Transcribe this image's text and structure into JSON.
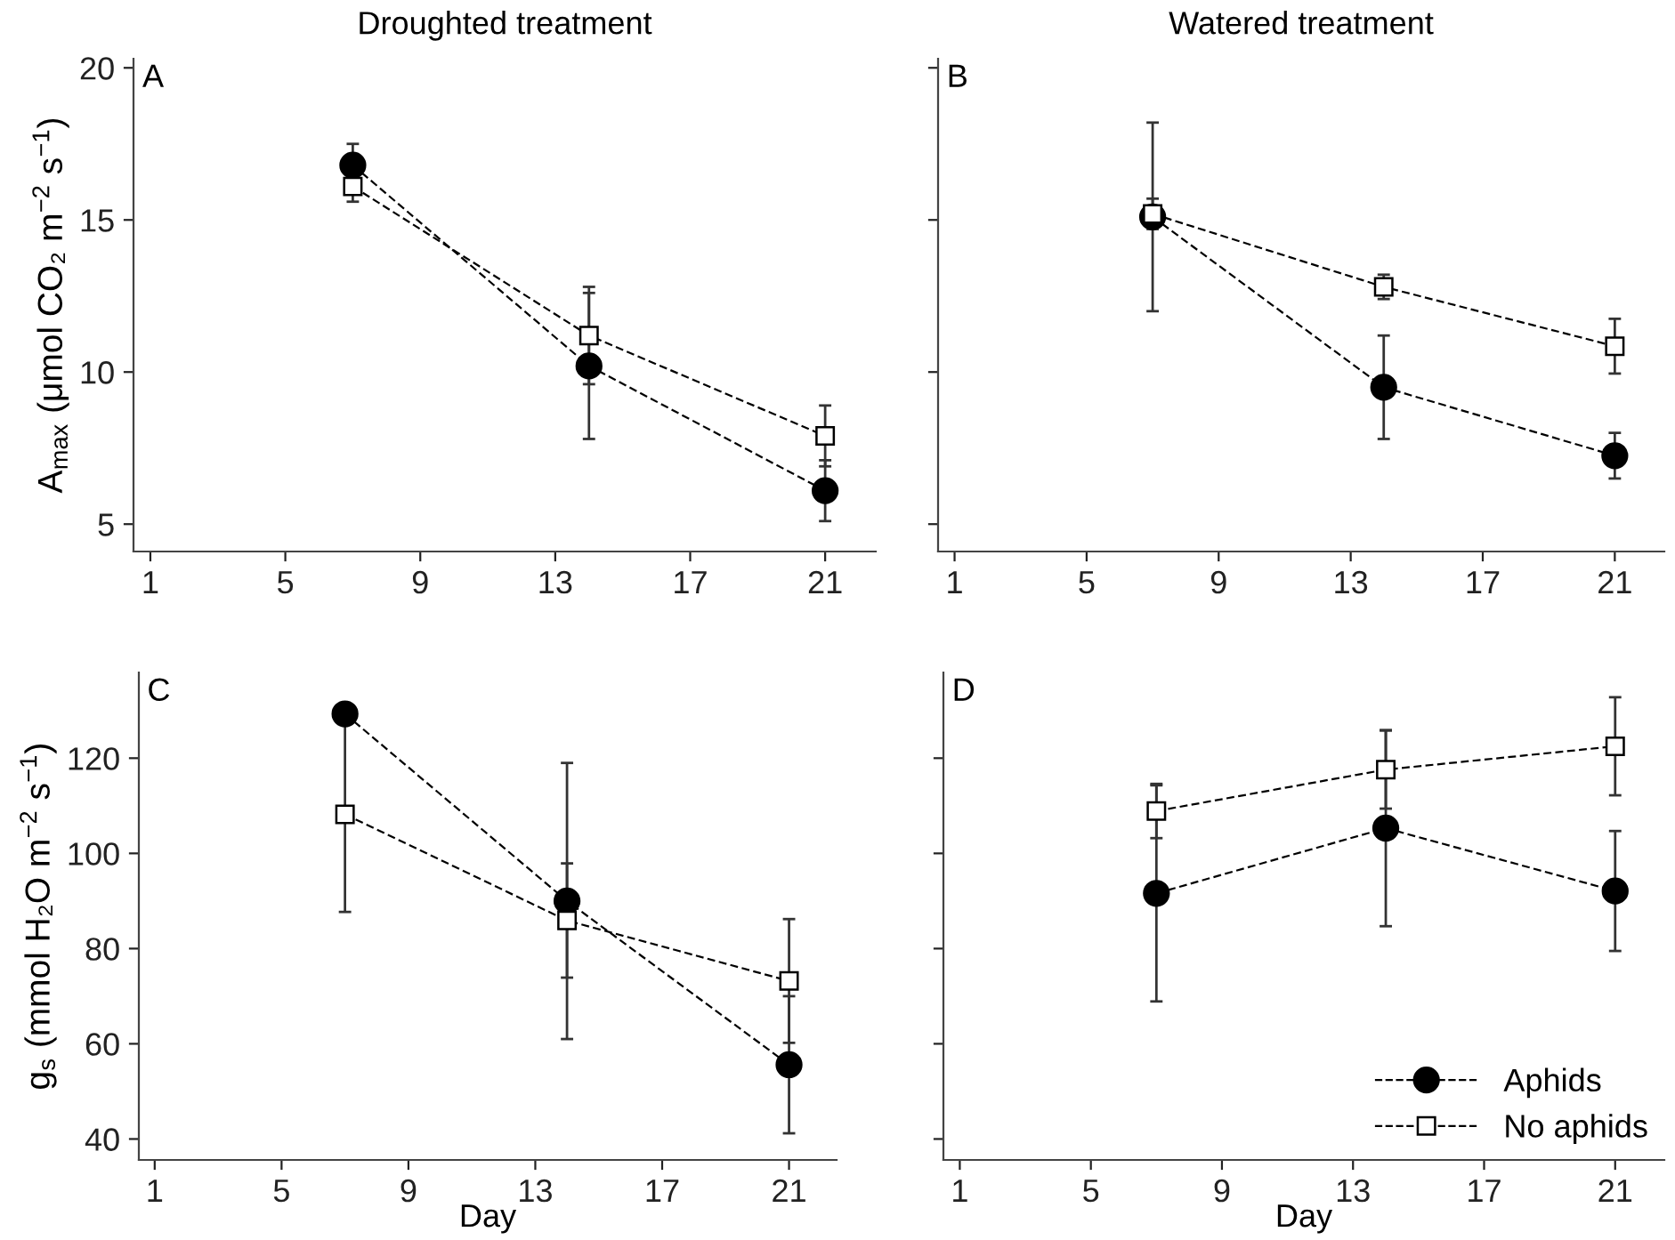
{
  "chart_data": [
    {
      "type": "line",
      "title": "Droughted treatment",
      "ylabel": "A$_{max}$ (μmol CO₂ m$^{−2}$ s$^{−1}$)",
      "annotations": [
        "A"
      ],
      "xlim": [
        0.5,
        22.5
      ],
      "xticks": [
        1,
        5,
        9,
        13,
        17,
        21
      ],
      "ylim": [
        4.1,
        20.3
      ],
      "yticks": [
        5,
        10,
        15,
        20
      ],
      "grid": false,
      "line_style": "dashed",
      "legend": false,
      "series": [
        {
          "color": "#000000",
          "marker": "circle",
          "x": [
            7,
            14,
            21
          ],
          "values": [
            16.8,
            10.2,
            6.1
          ],
          "errors": [
            0.7,
            2.4,
            1.0
          ]
        },
        {
          "color": "#000000",
          "marker": "square",
          "x": [
            7,
            14,
            21
          ],
          "values": [
            16.1,
            11.2,
            7.9
          ],
          "errors": [
            0.5,
            1.6,
            1.0
          ]
        }
      ]
    },
    {
      "type": "line",
      "title": "Watered treatment",
      "annotations": [
        "B"
      ],
      "xlim": [
        0.5,
        22.5
      ],
      "xticks": [
        1,
        5,
        9,
        13,
        17,
        21
      ],
      "ylim": [
        4.1,
        20.3
      ],
      "yticks": [
        5,
        10,
        15,
        20
      ],
      "tick_labels": "x",
      "grid": false,
      "line_style": "dashed",
      "legend": false,
      "series": [
        {
          "color": "#000000",
          "marker": "circle",
          "x": [
            7,
            14,
            21
          ],
          "values": [
            15.1,
            9.5,
            7.25
          ],
          "errors": [
            3.1,
            1.7,
            0.75
          ]
        },
        {
          "color": "#000000",
          "marker": "square",
          "x": [
            7,
            14,
            21
          ],
          "values": [
            15.2,
            12.8,
            10.85
          ],
          "errors": [
            0.5,
            0.4,
            0.9
          ]
        }
      ]
    },
    {
      "type": "line",
      "xlabel": "Day",
      "ylabel": "g$_{s}$ (mmol H₂O m$^{−2}$ s$^{−1}$)",
      "annotations": [
        "C"
      ],
      "xlim": [
        0.5,
        22.5
      ],
      "xticks": [
        1,
        5,
        9,
        13,
        17,
        21
      ],
      "ylim": [
        35.6,
        138
      ],
      "yticks": [
        40,
        60,
        80,
        100,
        120
      ],
      "grid": false,
      "line_style": "dashed",
      "legend": false,
      "series": [
        {
          "color": "#000000",
          "marker": "circle",
          "x": [
            7,
            14,
            21
          ],
          "values": [
            129.3,
            90.0,
            55.6
          ],
          "errors": [
            null,
            29,
            14.4
          ]
        },
        {
          "color": "#000000",
          "marker": "square",
          "x": [
            7,
            14,
            21
          ],
          "values": [
            108.2,
            85.9,
            73.2
          ],
          "errors": [
            20.5,
            12,
            13
          ]
        }
      ]
    },
    {
      "type": "line",
      "xlabel": "Day",
      "annotations": [
        "D"
      ],
      "xlim": [
        0.5,
        22.5
      ],
      "xticks": [
        1,
        5,
        9,
        13,
        17,
        21
      ],
      "ylim": [
        35.6,
        138
      ],
      "yticks": [
        40,
        60,
        80,
        100,
        120
      ],
      "tick_labels": "x",
      "grid": false,
      "line_style": "dashed",
      "legend": "bottom right",
      "series": [
        {
          "name": "Aphids",
          "color": "#000000",
          "marker": "circle",
          "x": [
            7,
            14,
            21
          ],
          "values": [
            91.6,
            105.3,
            92.1
          ],
          "errors": [
            22.7,
            20.6,
            12.6
          ]
        },
        {
          "name": "No aphids",
          "color": "#000000",
          "marker": "square",
          "x": [
            7,
            14,
            21
          ],
          "values": [
            108.9,
            117.6,
            122.5
          ],
          "errors": [
            5.7,
            8.2,
            10.3
          ]
        }
      ]
    }
  ]
}
